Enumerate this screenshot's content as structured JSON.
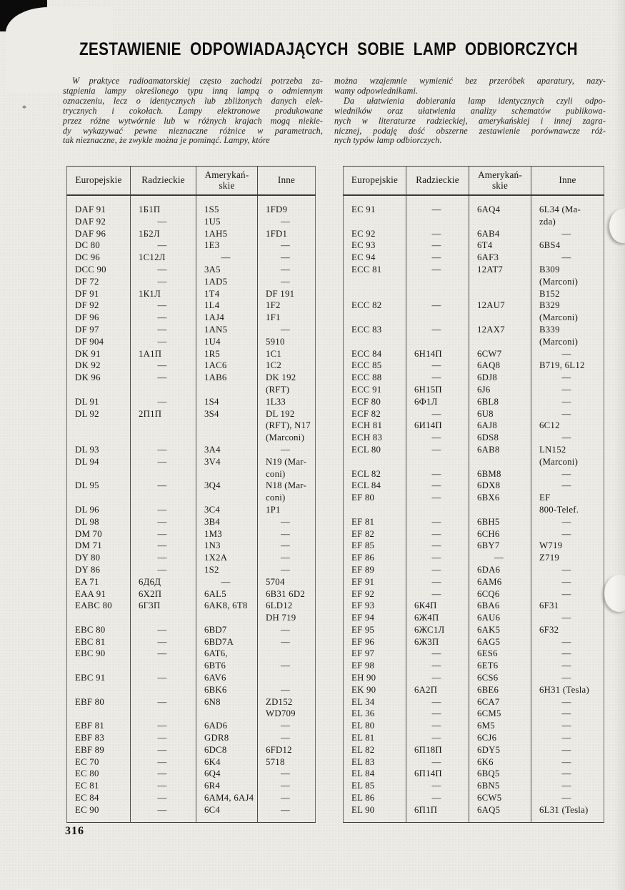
{
  "title": "ZESTAWIENIE ODPOWIADAJĄCYCH SOBIE LAMP ODBIORCZYCH",
  "page": {
    "number": "316"
  },
  "marks": {
    "asterisk": "*"
  },
  "intro": {
    "left": [
      {
        "indent": true,
        "lines": [
          "W praktyce radioamatorskiej często zachodzi potrzeba za-",
          "stąpienia lampy określonego typu inną lampą o odmiennym",
          "oznaczeniu, lecz o identycznych lub zbliżonych danych elek-",
          "trycznych i cokołach.  Lampy  elektronowe  produkowane",
          "przez różne wytwórnie lub w różnych krajach mogą niekie-",
          "dy wykazywać pewne  nieznaczne  różnice w parametrach,",
          "tak nieznaczne, że zwykle można je pominąć. Lampy, które"
        ]
      },
      {
        "indent": false,
        "lines": []
      }
    ],
    "right": [
      {
        "indent": false,
        "lines": [
          "można wzajemnie wymienić bez przeróbek aparatury, nazy-",
          "wamy odpowiednikami."
        ]
      },
      {
        "indent": true,
        "lines": [
          "Da ułatwienia  dobierania lamp identycznych czyli odpo-",
          "wiedników oraz ułatwienia  analizy  schematów  publikowa-",
          "nych w literaturze radzieckiej, amerykańskiej i innej zagra-",
          "nicznej, podaję dość obszerne zestawienie porównawcze róż-",
          "nych typów lamp odbiorczych."
        ]
      }
    ]
  },
  "tables": {
    "headers": [
      "Europejskie",
      "Radzieckie",
      "Amerykań-\nskie",
      "Inne"
    ],
    "left_rows": [
      [
        "DAF 91",
        "1Б1П",
        "1S5",
        "1FD9"
      ],
      [
        "DAF 92",
        "—",
        "1U5",
        "—"
      ],
      [
        "DAF 96",
        "1Б2Л",
        "1AH5",
        "1FD1"
      ],
      [
        "DC 80",
        "—",
        "1E3",
        "—"
      ],
      [
        "DC 96",
        "1С12Л",
        "—",
        "—"
      ],
      [
        "DCC 90",
        "—",
        "3A5",
        "—"
      ],
      [
        "DF 72",
        "—",
        "1AD5",
        "—"
      ],
      [
        "DF 91",
        "1К1Л",
        "1T4",
        "DF 191"
      ],
      [
        "DF 92",
        "—",
        "1L4",
        "1F2"
      ],
      [
        "DF 96",
        "—",
        "1AJ4",
        "1F1"
      ],
      [
        "DF 97",
        "—",
        "1AN5",
        "—"
      ],
      [
        "DF 904",
        "—",
        "1U4",
        "5910"
      ],
      [
        "DK 91",
        "1А1П",
        "1R5",
        "1C1"
      ],
      [
        "DK 92",
        "—",
        "1AC6",
        "1C2"
      ],
      [
        "DK 96",
        "—",
        "1AB6",
        "DK 192\n(RFT)"
      ],
      [
        "DL 91",
        "—",
        "1S4",
        "1L33"
      ],
      [
        "DL 92",
        "2П1П",
        "3S4",
        "DL 192\n(RFT), N17\n(Marconi)"
      ],
      [
        "DL 93",
        "—",
        "3A4",
        "—"
      ],
      [
        "DL 94",
        "—",
        "3V4",
        "N19 (Mar-\nconi)"
      ],
      [
        "DL 95",
        "—",
        "3Q4",
        "N18 (Mar-\nconi)"
      ],
      [
        "DL 96",
        "—",
        "3C4",
        "1P1"
      ],
      [
        "DL 98",
        "—",
        "3B4",
        "—"
      ],
      [
        "DM 70",
        "—",
        "1M3",
        "—"
      ],
      [
        "DM 71",
        "—",
        "1N3",
        "—"
      ],
      [
        "DY 80",
        "—",
        "1X2A",
        "—"
      ],
      [
        "DY 86",
        "—",
        "1S2",
        "—"
      ],
      [
        "EA 71",
        "6Д6Д",
        "—",
        "5704"
      ],
      [
        "EAA 91",
        "6Х2П",
        "6AL5",
        "6B31 6D2"
      ],
      [
        "EABC 80",
        "6Г3П",
        "6AK8, 6T8",
        "6LD12\nDH 719"
      ],
      [
        "EBC 80",
        "—",
        "6BD7",
        "—"
      ],
      [
        "EBC 81",
        "—",
        "6BD7A",
        "—"
      ],
      [
        "EBC 90",
        "—",
        "6AT6,\n6BT6",
        "\n—"
      ],
      [
        "EBC 91",
        "—",
        "6AV6\n6BK6",
        "\n—"
      ],
      [
        "EBF 80",
        "—",
        "6N8",
        "ZD152\nWD709"
      ],
      [
        "EBF 81",
        "—",
        "6AD6",
        "—"
      ],
      [
        "EBF 83",
        "—",
        "GDR8",
        "—"
      ],
      [
        "EBF 89",
        "—",
        "6DC8",
        "6FD12"
      ],
      [
        "EC 70",
        "—",
        "6K4",
        "5718"
      ],
      [
        "EC 80",
        "—",
        "6Q4",
        "—"
      ],
      [
        "EC 81",
        "—",
        "6R4",
        "—"
      ],
      [
        "EC 84",
        "—",
        "6AM4, 6AJ4",
        "—"
      ],
      [
        "EC 90",
        "—",
        "6C4",
        "—"
      ]
    ],
    "right_rows": [
      [
        "EC 91",
        "—",
        "6AQ4",
        "6L34 (Ma-\nzda)"
      ],
      [
        "EC 92",
        "—",
        "6AB4",
        "—"
      ],
      [
        "EC 93",
        "—",
        "6T4",
        "6BS4"
      ],
      [
        "EC 94",
        "—",
        "6AF3",
        "—"
      ],
      [
        "ECC 81",
        "—",
        "12AT7",
        "B309\n(Marconi)\nB152"
      ],
      [
        "ECC 82",
        "—",
        "12AU7",
        "B329\n(Marconi)"
      ],
      [
        "ECC 83",
        "—",
        "12AX7",
        "B339\n(Marconi)"
      ],
      [
        "ECC 84",
        "6Н14П",
        "6CW7",
        "—"
      ],
      [
        "ECC 85",
        "—",
        "6AQ8",
        "B719, 6L12"
      ],
      [
        "ECC 88",
        "—",
        "6DJ8",
        "—"
      ],
      [
        "ECC 91",
        "6Н15П",
        "6J6",
        "—"
      ],
      [
        "ECF 80",
        "6Ф1Л",
        "6BL8",
        "—"
      ],
      [
        "ECF 82",
        "—",
        "6U8",
        "—"
      ],
      [
        "ECH 81",
        "6И14П",
        "6AJ8",
        "6C12"
      ],
      [
        "ECH 83",
        "—",
        "6DS8",
        "—"
      ],
      [
        "ECL 80",
        "—",
        "6AB8",
        "LN152\n(Marconi)"
      ],
      [
        "ECL 82",
        "—",
        "6BM8",
        "—"
      ],
      [
        "ECL 84",
        "—",
        "6DX8",
        "—"
      ],
      [
        "EF 80",
        "—",
        "6BX6",
        "EF\n800-Telef."
      ],
      [
        "EF 81",
        "—",
        "6BH5",
        "—"
      ],
      [
        "EF 82",
        "—",
        "6CH6",
        "—"
      ],
      [
        "EF 85",
        "—",
        "6BY7",
        "W719"
      ],
      [
        "EF 86",
        "—",
        "—",
        "Z719"
      ],
      [
        "EF 89",
        "—",
        "6DA6",
        "—"
      ],
      [
        "EF 91",
        "—",
        "6AM6",
        "—"
      ],
      [
        "EF 92",
        "—",
        "6CQ6",
        "—"
      ],
      [
        "EF 93",
        "6К4П",
        "6BA6",
        "6F31"
      ],
      [
        "EF 94",
        "6Ж4П",
        "6AU6",
        "—"
      ],
      [
        "EF 95",
        "6ЖС1Л",
        "6AK5",
        "6F32"
      ],
      [
        "EF 96",
        "6Ж3П",
        "6AG5",
        "—"
      ],
      [
        "EF 97",
        "—",
        "6ES6",
        "—"
      ],
      [
        "EF 98",
        "—",
        "6ET6",
        "—"
      ],
      [
        "EH 90",
        "—",
        "6CS6",
        "—"
      ],
      [
        "EK 90",
        "6А2П",
        "6BE6",
        "6H31 (Tesla)"
      ],
      [
        "EL 34",
        "—",
        "6CA7",
        "—"
      ],
      [
        "EL 36",
        "—",
        "6CM5",
        "—"
      ],
      [
        "EL 80",
        "—",
        "6M5",
        "—"
      ],
      [
        "EL 81",
        "—",
        "6CJ6",
        "—"
      ],
      [
        "EL 82",
        "6П18П",
        "6DY5",
        "—"
      ],
      [
        "EL 83",
        "—",
        "6K6",
        "—"
      ],
      [
        "EL 84",
        "6П14П",
        "6BQ5",
        "—"
      ],
      [
        "EL 85",
        "—",
        "6BN5",
        "—"
      ],
      [
        "EL 86",
        "—",
        "6CW5",
        "—"
      ],
      [
        "EL 90",
        "6П1П",
        "6AQ5",
        "6L31 (Tesla)"
      ]
    ]
  }
}
